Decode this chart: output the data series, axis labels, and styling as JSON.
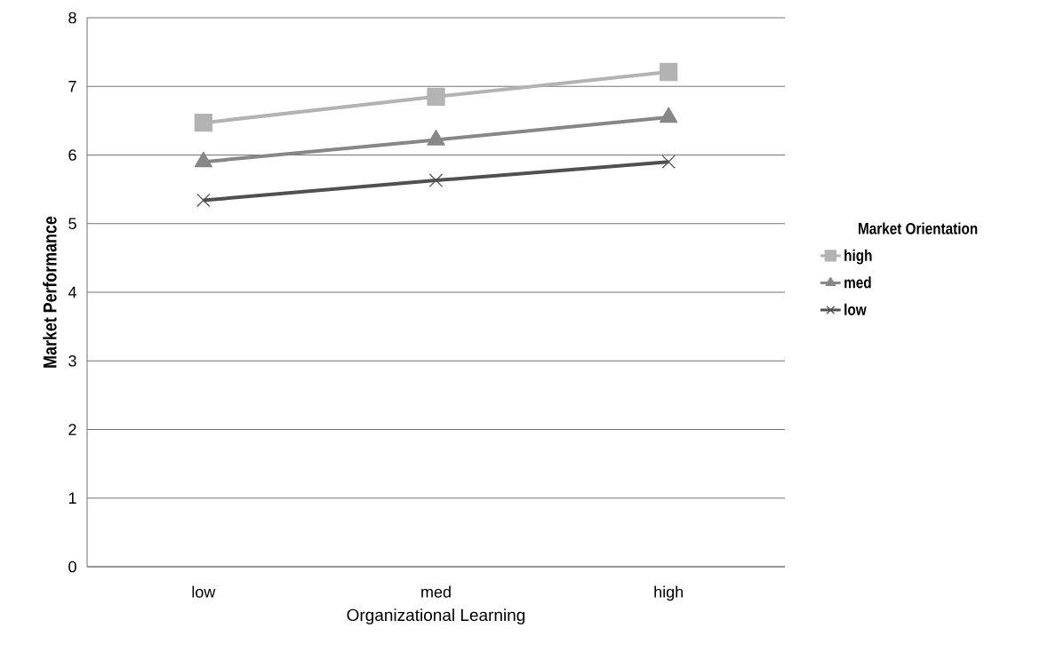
{
  "chart_data": {
    "type": "line",
    "xlabel": "Organizational Learning",
    "ylabel": "Market Performance",
    "legend_title": "Market Orientation",
    "categories": [
      "low",
      "med",
      "high"
    ],
    "series": [
      {
        "name": "high",
        "color": "#b3b3b3",
        "marker": "square",
        "values": [
          6.47,
          6.85,
          7.21
        ]
      },
      {
        "name": "med",
        "color": "#878787",
        "marker": "triangle",
        "values": [
          5.9,
          6.22,
          6.55
        ]
      },
      {
        "name": "low",
        "color": "#505050",
        "marker": "cross",
        "values": [
          5.34,
          5.63,
          5.9
        ]
      }
    ],
    "ylim": [
      0,
      8
    ],
    "yticks": [
      0,
      1,
      2,
      3,
      4,
      5,
      6,
      7,
      8
    ],
    "grid": "y",
    "legend": "right",
    "line_style": "solid"
  }
}
